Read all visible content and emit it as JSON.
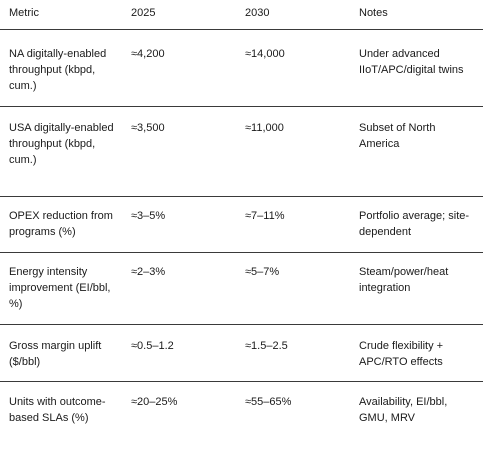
{
  "columns": {
    "metric": "Metric",
    "y2025": "2025",
    "y2030": "2030",
    "notes": "Notes"
  },
  "rows": [
    {
      "metric": "NA digitally-enabled throughput (kbpd, cum.)",
      "y2025": "≈4,200",
      "y2030": "≈14,000",
      "notes": "Under advanced IIoT/APC/digital twins"
    },
    {
      "metric": "USA digitally-enabled throughput (kbpd, cum.)",
      "y2025": "≈3,500",
      "y2030": "≈11,000",
      "notes": "Subset of North America"
    },
    {
      "metric": "OPEX reduction from programs (%)",
      "y2025": "≈3–5%",
      "y2030": "≈7–11%",
      "notes": "Portfolio average; site-dependent"
    },
    {
      "metric": "Energy intensity improvement (EI/bbl, %)",
      "y2025": "≈2–3%",
      "y2030": "≈5–7%",
      "notes": "Steam/power/heat integration"
    },
    {
      "metric": "Gross margin uplift ($/bbl)",
      "y2025": "≈0.5–1.2",
      "y2030": "≈1.5–2.5",
      "notes": "Crude flexibility + APC/RTO effects"
    },
    {
      "metric": "Units with outcome-based SLAs (%)",
      "y2025": "≈20–25%",
      "y2030": "≈55–65%",
      "notes": "Availability, EI/bbl, GMU, MRV"
    }
  ]
}
